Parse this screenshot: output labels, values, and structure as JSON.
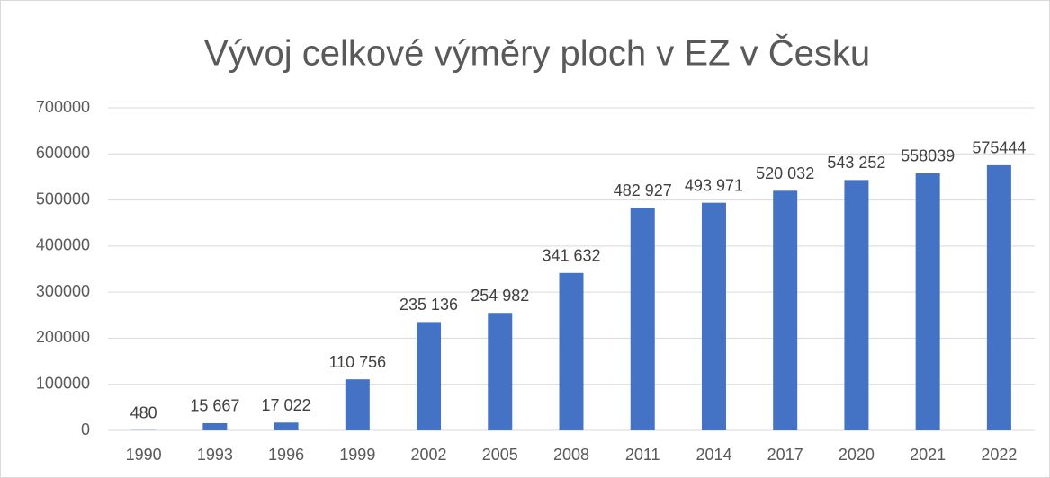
{
  "chart_data": {
    "type": "bar",
    "title": "Vývoj celkové výměry ploch v EZ v Česku",
    "categories": [
      "1990",
      "1993",
      "1996",
      "1999",
      "2002",
      "2005",
      "2008",
      "2011",
      "2014",
      "2017",
      "2020",
      "2021",
      "2022"
    ],
    "values": [
      480,
      15667,
      17022,
      110756,
      235136,
      254982,
      341632,
      482927,
      493971,
      520032,
      543252,
      558039,
      575444
    ],
    "value_labels": [
      "480",
      "15 667",
      "17 022",
      "110 756",
      "235 136",
      "254 982",
      "341 632",
      "482 927",
      "493 971",
      "520 032",
      "543 252",
      "558039",
      "575444"
    ],
    "color": "#4472c4",
    "ylim": [
      0,
      700000
    ],
    "yticks": [
      0,
      100000,
      200000,
      300000,
      400000,
      500000,
      600000,
      700000
    ],
    "grid": true
  }
}
